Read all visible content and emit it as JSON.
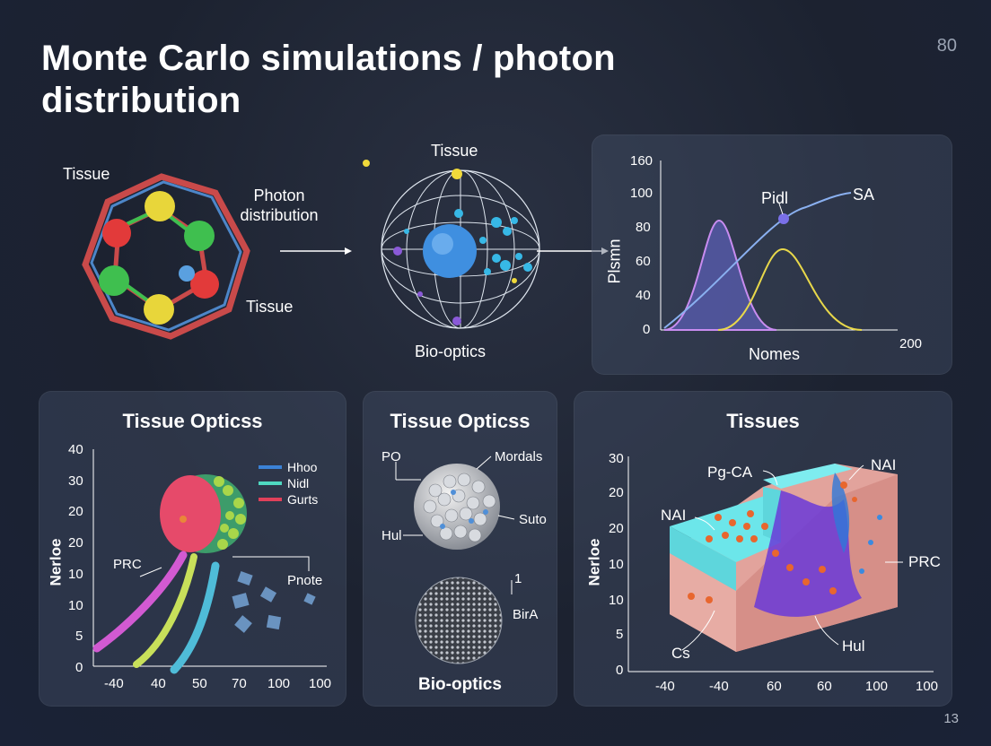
{
  "title": "Monte Carlo simulations / photon distribution",
  "page_number_top": "80",
  "page_number_bottom": "13",
  "top_section": {
    "molecule_labels": {
      "tissue_top": "Tissue",
      "photon_distribution": "Photon distribution",
      "tissue_bottom": "Tissue"
    },
    "sphere_labels": {
      "tissue": "Tissue",
      "bio_optics": "Bio-optics"
    },
    "chart": {
      "y_ticks": [
        "160",
        "100",
        "80",
        "60",
        "40",
        "0"
      ],
      "y_label": "Plsmn",
      "x_label": "Nomes",
      "x_end_tick": "200",
      "annotations": {
        "pidl": "Pidl",
        "sa": "SA"
      }
    }
  },
  "panel_left": {
    "title": "Tissue Opticss",
    "y_label": "Nerloe",
    "y_ticks": [
      "40",
      "30",
      "20",
      "20",
      "10",
      "10",
      "5",
      "0"
    ],
    "x_ticks": [
      "-40",
      "40",
      "50",
      "70",
      "100",
      "100"
    ],
    "legend": [
      "Hhoo",
      "Nidl",
      "Gurts"
    ],
    "annotations": {
      "prc": "PRC",
      "pnote": "Pnote"
    },
    "colors": {
      "legend1": "#3b82d6",
      "legend2": "#4fd8c0",
      "legend3": "#e0405a"
    }
  },
  "panel_middle": {
    "title": "Tissue Opticss",
    "labels": {
      "po": "PO",
      "mordals": "Mordals",
      "hul": "Hul",
      "suto": "Suto",
      "one": "1",
      "bira": "BirA"
    },
    "footer": "Bio-optics"
  },
  "panel_right": {
    "title": "Tissues",
    "y_label": "Nerloe",
    "y_ticks": [
      "30",
      "20",
      "20",
      "10",
      "10",
      "5",
      "0"
    ],
    "x_ticks": [
      "-40",
      "-40",
      "60",
      "60",
      "100",
      "100"
    ],
    "annotations": {
      "pg_ca": "Pg-CA",
      "nai_top": "NAI",
      "nai_left": "NAI",
      "prc": "PRC",
      "cs": "Cs",
      "hul": "Hul"
    }
  }
}
